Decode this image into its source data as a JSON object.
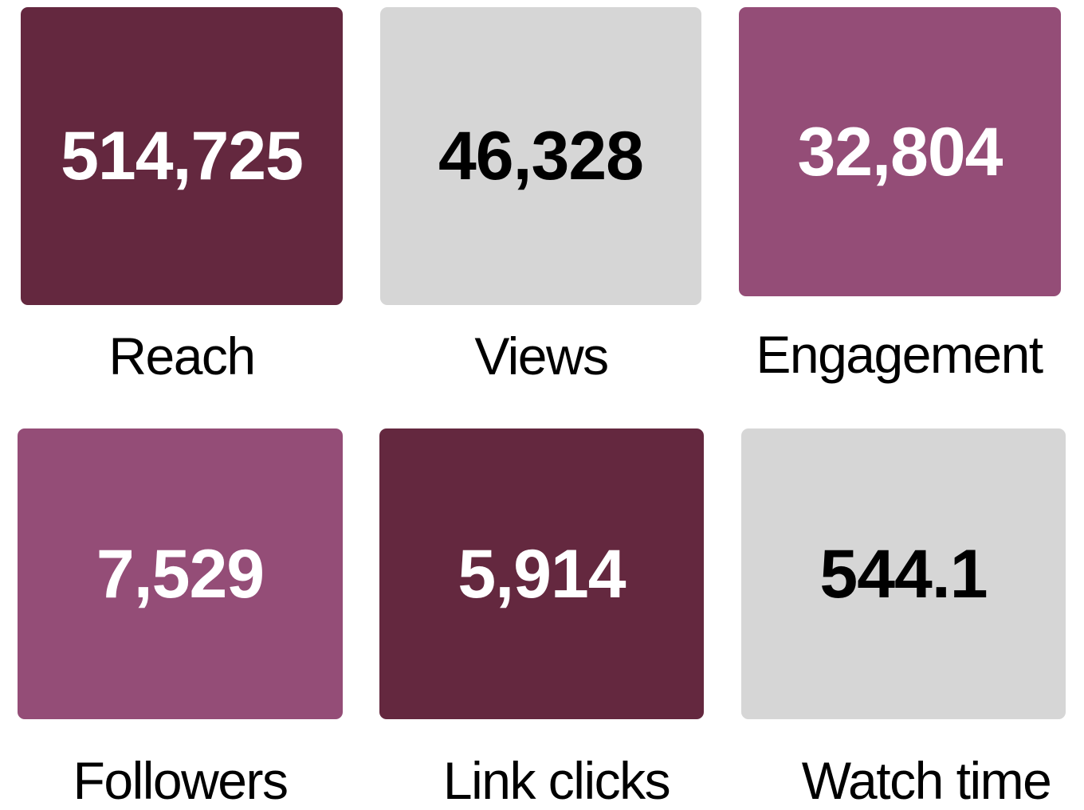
{
  "tiles": [
    {
      "value": "514,725",
      "label": "Reach",
      "color": "#64283f",
      "text_color": "#ffffff"
    },
    {
      "value": "46,328",
      "label": "Views",
      "color": "#d6d6d6",
      "text_color": "#000000"
    },
    {
      "value": "32,804",
      "label": "Engagement",
      "color": "#944d77",
      "text_color": "#ffffff"
    },
    {
      "value": "7,529",
      "label": "Followers",
      "color": "#944d77",
      "text_color": "#ffffff"
    },
    {
      "value": "5,914",
      "label": "Link clicks",
      "color": "#64283f",
      "text_color": "#ffffff"
    },
    {
      "value": "544.1",
      "label": "Watch time",
      "color": "#d6d6d6",
      "text_color": "#000000"
    }
  ]
}
